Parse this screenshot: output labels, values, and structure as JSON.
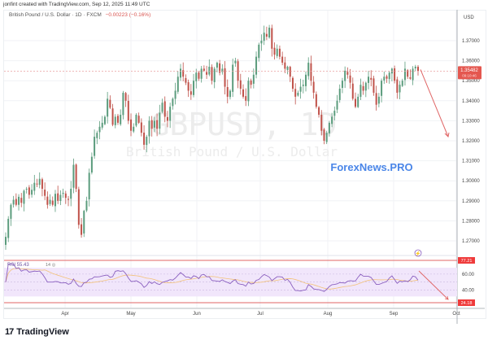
{
  "header": {
    "credit": "jonfint created with TradingView.com, Sep 12, 2025 11:49 UTC",
    "symbol_desc": "British Pound / U.S. Dollar · 1D · FXCM",
    "change": "−0.00223 (−0.16%)"
  },
  "watermark": {
    "symbol": "GBPUSD, 1D",
    "description": "British Pound / U.S. Dollar"
  },
  "brand_overlay": "ForexNews.PRO",
  "price_axis": {
    "currency": "USD",
    "ticks": [
      "1.37000",
      "1.36000",
      "1.35000",
      "1.34000",
      "1.33000",
      "1.32000",
      "1.31000",
      "1.30000",
      "1.29000",
      "1.28000",
      "1.27000"
    ],
    "current_price": "1.35482",
    "countdown": "09:10:46"
  },
  "time_axis": {
    "labels": [
      "Apr",
      "May",
      "Jun",
      "Jul",
      "Aug",
      "Sep",
      "Oct"
    ]
  },
  "rsi": {
    "label": "RSI",
    "value": "55.43",
    "params": "14 close",
    "levels": [
      "60.00",
      "40.00"
    ],
    "upper_marker": "77.21",
    "lower_marker": "24.18"
  },
  "colors": {
    "up": "#5b9c7d",
    "down": "#c0524a",
    "rsi_line": "#8a5fbf",
    "rsi_ma": "#f2c27a",
    "rsi_band": "#f1e6fb",
    "marker_red": "#ef3b3b",
    "arrow": "#e06666",
    "brand_blue": "#4a86e8"
  },
  "brand": {
    "logo": "TradingView"
  },
  "chart_data": {
    "type": "candlestick",
    "title": "British Pound / U.S. Dollar · 1D · FXCM",
    "closes": [
      1.272,
      1.281,
      1.288,
      1.2905,
      1.288,
      1.292,
      1.289,
      1.295,
      1.296,
      1.293,
      1.2955,
      1.299,
      1.2985,
      1.301,
      1.296,
      1.2925,
      1.288,
      1.2905,
      1.288,
      1.2935,
      1.29,
      1.293,
      1.294,
      1.2915,
      1.2905,
      1.296,
      1.308,
      1.296,
      1.278,
      1.273,
      1.285,
      1.29,
      1.304,
      1.312,
      1.322,
      1.324,
      1.327,
      1.329,
      1.332,
      1.341,
      1.3365,
      1.328,
      1.332,
      1.329,
      1.333,
      1.344,
      1.34,
      1.33,
      1.325,
      1.327,
      1.333,
      1.329,
      1.324,
      1.318,
      1.322,
      1.33,
      1.326,
      1.33,
      1.326,
      1.334,
      1.339,
      1.332,
      1.33,
      1.337,
      1.341,
      1.345,
      1.352,
      1.356,
      1.352,
      1.349,
      1.345,
      1.343,
      1.35,
      1.354,
      1.351,
      1.356,
      1.355,
      1.353,
      1.357,
      1.35,
      1.356,
      1.359,
      1.354,
      1.356,
      1.347,
      1.342,
      1.345,
      1.358,
      1.36,
      1.35,
      1.346,
      1.342,
      1.34,
      1.35,
      1.348,
      1.353,
      1.362,
      1.368,
      1.37,
      1.374,
      1.372,
      1.3765,
      1.366,
      1.363,
      1.366,
      1.362,
      1.359,
      1.356,
      1.357,
      1.352,
      1.346,
      1.342,
      1.344,
      1.347,
      1.348,
      1.353,
      1.359,
      1.35,
      1.344,
      1.337,
      1.333,
      1.325,
      1.32,
      1.324,
      1.329,
      1.332,
      1.335,
      1.34,
      1.346,
      1.35,
      1.355,
      1.353,
      1.349,
      1.341,
      1.337,
      1.342,
      1.348,
      1.345,
      1.349,
      1.352,
      1.3505,
      1.344,
      1.338,
      1.342,
      1.35,
      1.352,
      1.351,
      1.354,
      1.356,
      1.35,
      1.344,
      1.348,
      1.35,
      1.356,
      1.352,
      1.351,
      1.356,
      1.357,
      1.3548
    ],
    "ylim": [
      1.268,
      1.38
    ],
    "x_labels": [
      "Apr",
      "May",
      "Jun",
      "Jul",
      "Aug",
      "Sep",
      "Oct"
    ],
    "projection_arrow": {
      "from_price": 1.3548,
      "to_price": 1.3235
    },
    "rsi": {
      "value": 55.43,
      "upper": 77.21,
      "lower": 24.18,
      "band": [
        40,
        60
      ]
    }
  }
}
